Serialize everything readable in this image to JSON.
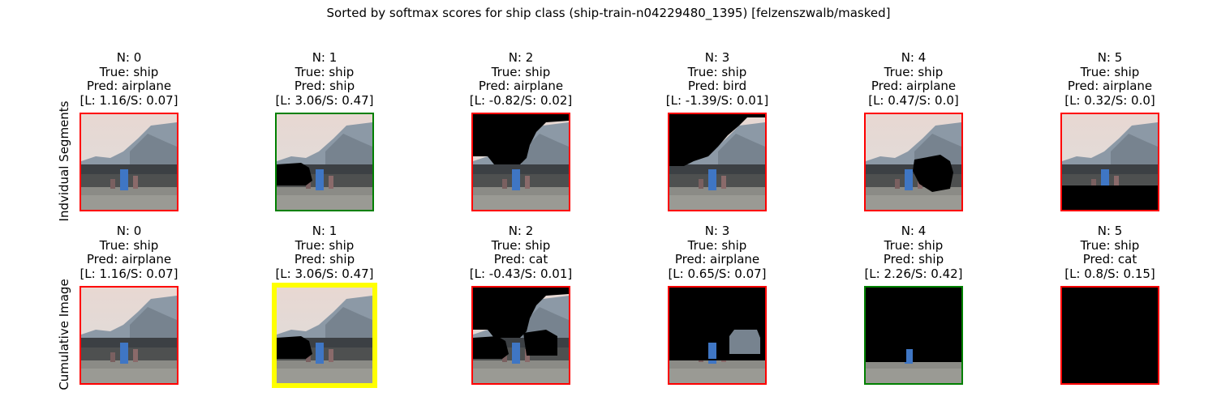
{
  "figure": {
    "title": "Sorted by softmax scores for ship class (ship-train-n04229480_1395) [felzenszwalb/masked]"
  },
  "rows": [
    {
      "label": "Indvidual Segments",
      "panels": [
        {
          "n": "N: 0",
          "true": "True: ship",
          "pred": "Pred: airplane",
          "score": "[L: 1.16/S: 0.07]",
          "border": "red",
          "mask": "none"
        },
        {
          "n": "N: 1",
          "true": "True: ship",
          "pred": "Pred: ship",
          "score": "[L: 3.06/S: 0.47]",
          "border": "green",
          "mask": "seg1"
        },
        {
          "n": "N: 2",
          "true": "True: ship",
          "pred": "Pred: airplane",
          "score": "[L: -0.82/S: 0.02]",
          "border": "red",
          "mask": "seg2"
        },
        {
          "n": "N: 3",
          "true": "True: ship",
          "pred": "Pred: bird",
          "score": "[L: -1.39/S: 0.01]",
          "border": "red",
          "mask": "seg3"
        },
        {
          "n": "N: 4",
          "true": "True: ship",
          "pred": "Pred: airplane",
          "score": "[L: 0.47/S: 0.0]",
          "border": "red",
          "mask": "seg4"
        },
        {
          "n": "N: 5",
          "true": "True: ship",
          "pred": "Pred: airplane",
          "score": "[L: 0.32/S: 0.0]",
          "border": "red",
          "mask": "seg5"
        }
      ]
    },
    {
      "label": "Cumulative Image",
      "panels": [
        {
          "n": "N: 0",
          "true": "True: ship",
          "pred": "Pred: airplane",
          "score": "[L: 1.16/S: 0.07]",
          "border": "red",
          "mask": "none"
        },
        {
          "n": "N: 1",
          "true": "True: ship",
          "pred": "Pred: ship",
          "score": "[L: 3.06/S: 0.47]",
          "border": "yellow",
          "mask": "cum1"
        },
        {
          "n": "N: 2",
          "true": "True: ship",
          "pred": "Pred: cat",
          "score": "[L: -0.43/S: 0.01]",
          "border": "red",
          "mask": "cum2"
        },
        {
          "n": "N: 3",
          "true": "True: ship",
          "pred": "Pred: airplane",
          "score": "[L: 0.65/S: 0.07]",
          "border": "red",
          "mask": "cum3"
        },
        {
          "n": "N: 4",
          "true": "True: ship",
          "pred": "Pred: ship",
          "score": "[L: 2.26/S: 0.42]",
          "border": "green",
          "mask": "cum4"
        },
        {
          "n": "N: 5",
          "true": "True: ship",
          "pred": "Pred: cat",
          "score": "[L: 0.8/S: 0.15]",
          "border": "red",
          "mask": "all"
        }
      ]
    }
  ],
  "colors": {
    "red": "#ff0000",
    "green": "#008000",
    "yellow": "#ffff00",
    "sky": "#dcdcdc",
    "mountain": "#8c99a6",
    "treeline": "#3c4044",
    "ground": "#8b8b86",
    "figure_blue": "#3f76c4",
    "masked": "#000000"
  }
}
